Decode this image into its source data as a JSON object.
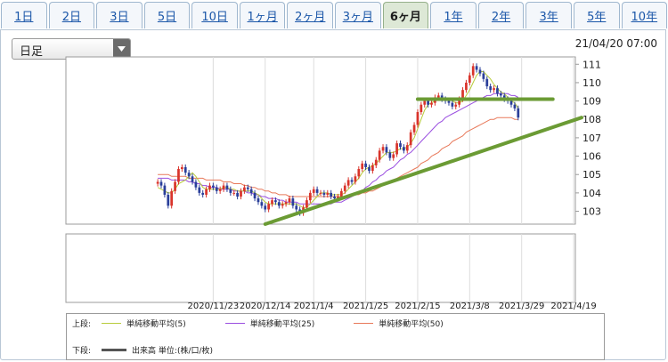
{
  "tabs": [
    {
      "label": "1日",
      "active": false
    },
    {
      "label": "2日",
      "active": false
    },
    {
      "label": "3日",
      "active": false
    },
    {
      "label": "5日",
      "active": false
    },
    {
      "label": "10日",
      "active": false
    },
    {
      "label": "1ヶ月",
      "active": false
    },
    {
      "label": "2ヶ月",
      "active": false
    },
    {
      "label": "3ヶ月",
      "active": false
    },
    {
      "label": "6ヶ月",
      "active": true
    },
    {
      "label": "1年",
      "active": false
    },
    {
      "label": "2年",
      "active": false
    },
    {
      "label": "3年",
      "active": false
    },
    {
      "label": "5年",
      "active": false
    },
    {
      "label": "10年",
      "active": false
    }
  ],
  "period_select": {
    "value": "日足"
  },
  "timestamp": "21/04/20 07:00",
  "legend": {
    "upper_label": "上段:",
    "lower_label": "下段:",
    "ma5": "単純移動平均(5)",
    "ma25": "単純移動平均(25)",
    "ma50": "単純移動平均(50)",
    "volume": "出来高 単位:(株/口/枚)"
  },
  "chart_data": {
    "type": "candlestick",
    "ylim": [
      102.3,
      111.4
    ],
    "y_ticks": [
      103,
      104,
      105,
      106,
      107,
      108,
      109,
      110,
      111
    ],
    "x_ticks": [
      {
        "index": 42,
        "label": "2020/11/23"
      },
      {
        "index": 57,
        "label": "2020/12/14"
      },
      {
        "index": 71,
        "label": "2021/1/4"
      },
      {
        "index": 86,
        "label": "2021/1/25"
      },
      {
        "index": 101,
        "label": "2021/2/15"
      },
      {
        "index": 116,
        "label": "2021/3/8"
      },
      {
        "index": 131,
        "label": "2021/3/29"
      },
      {
        "index": 146,
        "label": "2021/4/19"
      }
    ],
    "n_slots": 147,
    "first_index": 26,
    "close": [
      104.6,
      104.4,
      103.9,
      103.3,
      104.1,
      104.6,
      105.3,
      105.4,
      105.1,
      104.9,
      104.6,
      104.3,
      104.0,
      103.9,
      104.2,
      104.4,
      104.3,
      104.1,
      104.2,
      104.4,
      104.2,
      104.0,
      104.0,
      103.8,
      104.1,
      104.3,
      104.2,
      104.0,
      103.7,
      103.5,
      103.3,
      103.1,
      103.4,
      103.6,
      103.5,
      103.3,
      103.4,
      103.5,
      103.7,
      103.3,
      103.1,
      102.9,
      103.2,
      103.6,
      104.0,
      104.2,
      104.0,
      104.0,
      103.9,
      104.0,
      103.8,
      103.7,
      103.8,
      104.1,
      104.4,
      104.7,
      104.6,
      104.9,
      105.3,
      105.6,
      105.4,
      105.2,
      105.5,
      105.8,
      106.3,
      106.5,
      106.2,
      105.9,
      106.1,
      106.7,
      106.5,
      106.3,
      106.6,
      107.3,
      107.7,
      108.4,
      108.8,
      109.0,
      108.8,
      108.9,
      109.2,
      109.3,
      109.1,
      109.0,
      108.9,
      108.7,
      108.8,
      109.1,
      109.6,
      110.0,
      110.4,
      110.9,
      110.7,
      110.5,
      110.2,
      109.8,
      109.6,
      109.7,
      109.4,
      109.3,
      109.1,
      109.0,
      108.8,
      108.6,
      108.1
    ],
    "ma5": [
      104.3,
      104.2,
      104.1,
      104.0,
      104.0,
      104.2,
      104.5,
      104.6,
      104.7,
      104.9,
      105.1,
      104.9,
      104.6,
      104.3,
      104.2,
      104.2,
      104.2,
      104.2,
      104.2,
      104.3,
      104.3,
      104.2,
      104.2,
      104.1,
      104.1,
      104.1,
      104.1,
      104.1,
      104.0,
      103.9,
      103.7,
      103.5,
      103.4,
      103.4,
      103.4,
      103.4,
      103.4,
      103.4,
      103.4,
      103.4,
      103.4,
      103.3,
      103.2,
      103.2,
      103.4,
      103.6,
      103.8,
      104.0,
      104.0,
      104.0,
      103.9,
      103.9,
      103.9,
      103.9,
      104.0,
      104.2,
      104.4,
      104.6,
      104.8,
      105.1,
      105.3,
      105.4,
      105.5,
      105.6,
      105.8,
      106.0,
      106.2,
      106.2,
      106.2,
      106.3,
      106.4,
      106.4,
      106.5,
      106.7,
      107.0,
      107.5,
      108.0,
      108.5,
      108.8,
      108.9,
      109.0,
      109.1,
      109.1,
      109.1,
      109.1,
      109.0,
      108.9,
      108.9,
      109.0,
      109.3,
      109.6,
      110.0,
      110.4,
      110.6,
      110.6,
      110.4,
      110.2,
      109.9,
      109.7,
      109.5,
      109.4,
      109.2,
      109.0,
      108.9,
      108.6
    ],
    "ma25": [
      104.8,
      104.8,
      104.8,
      104.8,
      104.7,
      104.7,
      104.7,
      104.7,
      104.7,
      104.6,
      104.6,
      104.5,
      104.5,
      104.4,
      104.4,
      104.3,
      104.3,
      104.3,
      104.2,
      104.2,
      104.2,
      104.2,
      104.1,
      104.1,
      104.1,
      104.1,
      104.0,
      104.0,
      103.9,
      103.9,
      103.8,
      103.8,
      103.7,
      103.7,
      103.7,
      103.6,
      103.6,
      103.5,
      103.5,
      103.5,
      103.5,
      103.4,
      103.4,
      103.4,
      103.4,
      103.4,
      103.4,
      103.4,
      103.4,
      103.4,
      103.4,
      103.5,
      103.5,
      103.5,
      103.6,
      103.7,
      103.8,
      103.9,
      104.0,
      104.1,
      104.3,
      104.4,
      104.6,
      104.7,
      104.9,
      105.0,
      105.2,
      105.3,
      105.4,
      105.6,
      105.8,
      105.9,
      106.1,
      106.2,
      106.4,
      106.6,
      106.8,
      107.0,
      107.2,
      107.4,
      107.6,
      107.8,
      107.9,
      108.1,
      108.2,
      108.3,
      108.4,
      108.5,
      108.6,
      108.7,
      108.8,
      108.9,
      109.0,
      109.1,
      109.2,
      109.3,
      109.3,
      109.4,
      109.4,
      109.4,
      109.4,
      109.4,
      109.3,
      109.3,
      109.2
    ],
    "ma50": [
      105.0,
      105.0,
      105.0,
      105.0,
      104.9,
      104.9,
      104.9,
      104.9,
      104.9,
      104.8,
      104.8,
      104.8,
      104.8,
      104.8,
      104.7,
      104.7,
      104.7,
      104.7,
      104.7,
      104.6,
      104.6,
      104.6,
      104.5,
      104.5,
      104.5,
      104.4,
      104.4,
      104.3,
      104.3,
      104.2,
      104.2,
      104.1,
      104.1,
      104.0,
      104.0,
      103.9,
      103.9,
      103.9,
      103.8,
      103.8,
      103.8,
      103.8,
      103.8,
      103.8,
      103.8,
      103.8,
      103.8,
      103.8,
      103.8,
      103.8,
      103.8,
      103.8,
      103.8,
      103.8,
      103.8,
      103.8,
      103.9,
      103.9,
      103.9,
      104.0,
      104.0,
      104.1,
      104.1,
      104.2,
      104.3,
      104.4,
      104.5,
      104.6,
      104.7,
      104.8,
      104.9,
      105.0,
      105.1,
      105.2,
      105.3,
      105.4,
      105.6,
      105.7,
      105.8,
      106.0,
      106.1,
      106.2,
      106.4,
      106.5,
      106.6,
      106.8,
      106.9,
      107.0,
      107.1,
      107.3,
      107.4,
      107.5,
      107.6,
      107.7,
      107.8,
      107.9,
      108.0,
      108.0,
      108.1,
      108.1,
      108.1,
      108.1,
      108.1,
      108.0,
      108.0
    ],
    "trendlines": [
      {
        "from": [
          57,
          102.3
        ],
        "to": [
          147,
          108.1
        ]
      },
      {
        "from": [
          101,
          109.1
        ],
        "to": [
          140,
          109.1
        ]
      }
    ],
    "colors": {
      "up": "#d9342b",
      "down": "#2a3f9a",
      "ma5": "#b8cc3c",
      "ma25": "#9a4ee0",
      "ma50": "#e8795a",
      "trend": "#6b9b34"
    }
  }
}
